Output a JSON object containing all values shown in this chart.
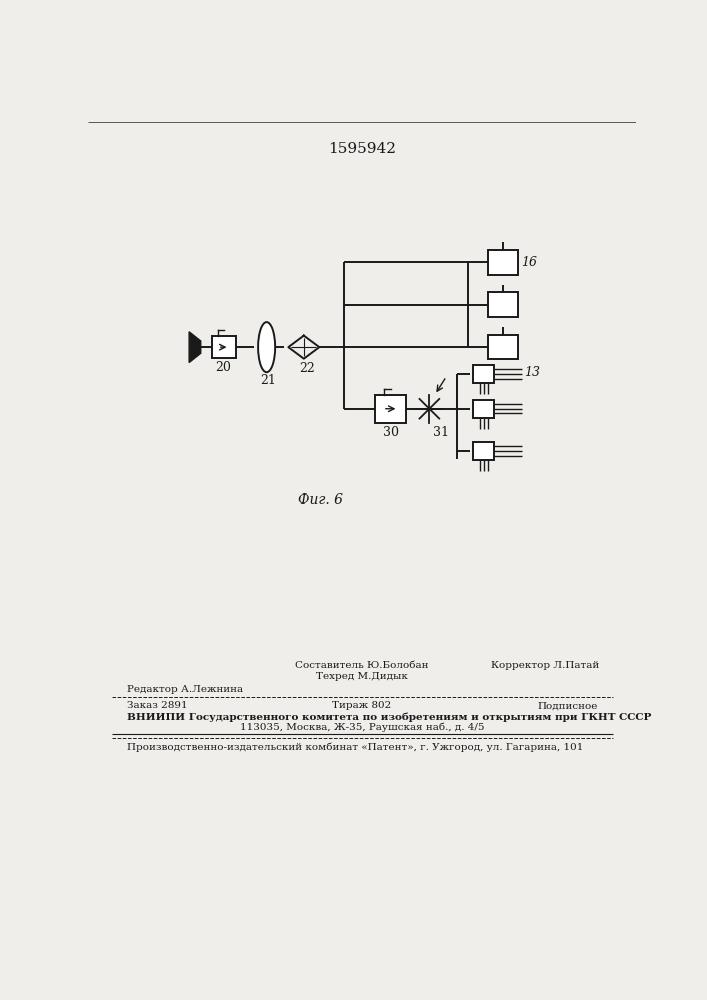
{
  "title": "1595942",
  "fig_label": "Фиг. 6",
  "background_color": "#f0eeea",
  "line_color": "#1a1a1a",
  "lw": 1.4,
  "bottom_texts": {
    "sostavitel": "Составитель Ю.Болобан",
    "tehred": "Техред М.Дидык",
    "korrektor": "Корректор Л.Патай",
    "redaktor": "Редактор А.Лежнина",
    "zakaz": "Заказ 2891",
    "tirazh": "Тираж 802",
    "podpisnoe": "Подписное",
    "vniipи": "ВНИИПИ Государственного комитета по изобретениям и открытиям при ГКНТ СССР",
    "addr": "113035, Москва, Ж-35, Раушская наб., д. 4/5",
    "patent": "Производственно-издательский комбинат «Патент», г. Ужгород, ул. Гагарина, 101"
  }
}
